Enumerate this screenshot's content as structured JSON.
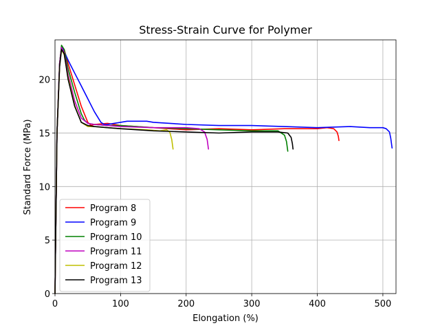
{
  "chart_data": {
    "type": "line",
    "title": "Stress-Strain Curve for Polymer",
    "xlabel": "Elongation (%)",
    "ylabel": "Standard Force (MPa)",
    "xlim": [
      0,
      520
    ],
    "ylim": [
      0,
      23.7
    ],
    "x_ticks": [
      0,
      100,
      200,
      300,
      400,
      500
    ],
    "y_ticks": [
      0,
      5,
      10,
      15,
      20
    ],
    "grid": true,
    "legend_position": "lower-left",
    "series": [
      {
        "name": "Program 8",
        "color": "#ff0000",
        "x": [
          0,
          3,
          7,
          10,
          14,
          20,
          30,
          40,
          50,
          55,
          60,
          80,
          100,
          150,
          200,
          250,
          300,
          350,
          400,
          415,
          425,
          430,
          432,
          433
        ],
        "y": [
          0,
          15,
          21.5,
          23.1,
          22.8,
          21.5,
          19.5,
          17.5,
          16.0,
          15.7,
          15.8,
          15.9,
          15.7,
          15.5,
          15.3,
          15.4,
          15.3,
          15.4,
          15.4,
          15.5,
          15.4,
          15.1,
          14.7,
          14.3
        ]
      },
      {
        "name": "Program 9",
        "color": "#0000ff",
        "x": [
          0,
          3,
          7,
          10,
          14,
          20,
          30,
          40,
          50,
          60,
          70,
          75,
          80,
          90,
          100,
          110,
          120,
          130,
          140,
          150,
          200,
          250,
          300,
          350,
          400,
          450,
          480,
          500,
          505,
          510,
          512,
          514
        ],
        "y": [
          0,
          15,
          21.5,
          23.1,
          22.6,
          21.8,
          20.6,
          19.4,
          18.2,
          17.0,
          16.0,
          15.8,
          15.8,
          15.9,
          16.0,
          16.1,
          16.1,
          16.1,
          16.1,
          16.0,
          15.8,
          15.7,
          15.7,
          15.6,
          15.5,
          15.6,
          15.5,
          15.5,
          15.4,
          15.1,
          14.5,
          13.6
        ]
      },
      {
        "name": "Program 10",
        "color": "#008000",
        "x": [
          0,
          3,
          7,
          10,
          14,
          20,
          30,
          40,
          45,
          50,
          60,
          80,
          100,
          150,
          200,
          250,
          300,
          340,
          350,
          353,
          355
        ],
        "y": [
          0,
          15,
          21.5,
          23.2,
          22.8,
          21.0,
          18.8,
          16.8,
          16.2,
          15.9,
          15.8,
          15.7,
          15.7,
          15.5,
          15.4,
          15.3,
          15.2,
          15.2,
          14.8,
          14.2,
          13.3
        ]
      },
      {
        "name": "Program 11",
        "color": "#bf00bf",
        "x": [
          0,
          3,
          7,
          10,
          14,
          20,
          30,
          40,
          50,
          60,
          80,
          100,
          150,
          200,
          220,
          228,
          232,
          234
        ],
        "y": [
          0,
          15,
          21.5,
          23.0,
          22.5,
          20.5,
          18.0,
          16.4,
          15.9,
          15.8,
          15.7,
          15.6,
          15.5,
          15.5,
          15.4,
          15.1,
          14.4,
          13.5
        ]
      },
      {
        "name": "Program 12",
        "color": "#bfbf00",
        "x": [
          0,
          3,
          7,
          10,
          14,
          20,
          30,
          40,
          50,
          60,
          80,
          100,
          140,
          160,
          170,
          175,
          178,
          180
        ],
        "y": [
          0,
          15,
          21.2,
          22.8,
          22.3,
          20.2,
          17.6,
          16.0,
          15.6,
          15.6,
          15.5,
          15.4,
          15.3,
          15.2,
          15.3,
          15.1,
          14.4,
          13.5
        ]
      },
      {
        "name": "Program 13",
        "color": "#000000",
        "x": [
          0,
          3,
          7,
          10,
          14,
          20,
          30,
          40,
          50,
          60,
          80,
          100,
          150,
          200,
          250,
          300,
          340,
          355,
          360,
          362,
          363
        ],
        "y": [
          0,
          15,
          21.2,
          22.8,
          22.4,
          20.0,
          17.5,
          16.0,
          15.7,
          15.6,
          15.5,
          15.4,
          15.2,
          15.1,
          15.0,
          15.1,
          15.1,
          15.0,
          14.6,
          14.0,
          13.5
        ]
      }
    ]
  }
}
